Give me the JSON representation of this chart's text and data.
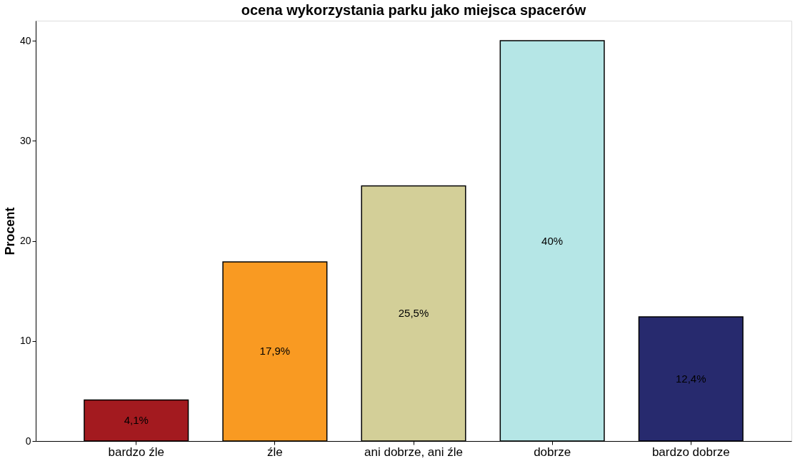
{
  "chart_data": {
    "type": "bar",
    "title": "ocena wykorzystania parku jako miejsca spacerów",
    "ylabel": "Procent",
    "categories": [
      "bardzo źle",
      "źle",
      "ani dobrze, ani źle",
      "dobrze",
      "bardzo dobrze"
    ],
    "values": [
      4.1,
      17.9,
      25.5,
      40,
      12.4
    ],
    "colors": [
      "#a31a1f",
      "#f99a22",
      "#d3cf98",
      "#b5e6e6",
      "#272a6e"
    ],
    "value_labels": [
      "4,1%",
      "17,9%",
      "25,5%",
      "40%",
      "12,4%"
    ],
    "ylim": [
      0,
      42
    ],
    "yticks": [
      0,
      10,
      20,
      30,
      40
    ],
    "grid": false
  }
}
